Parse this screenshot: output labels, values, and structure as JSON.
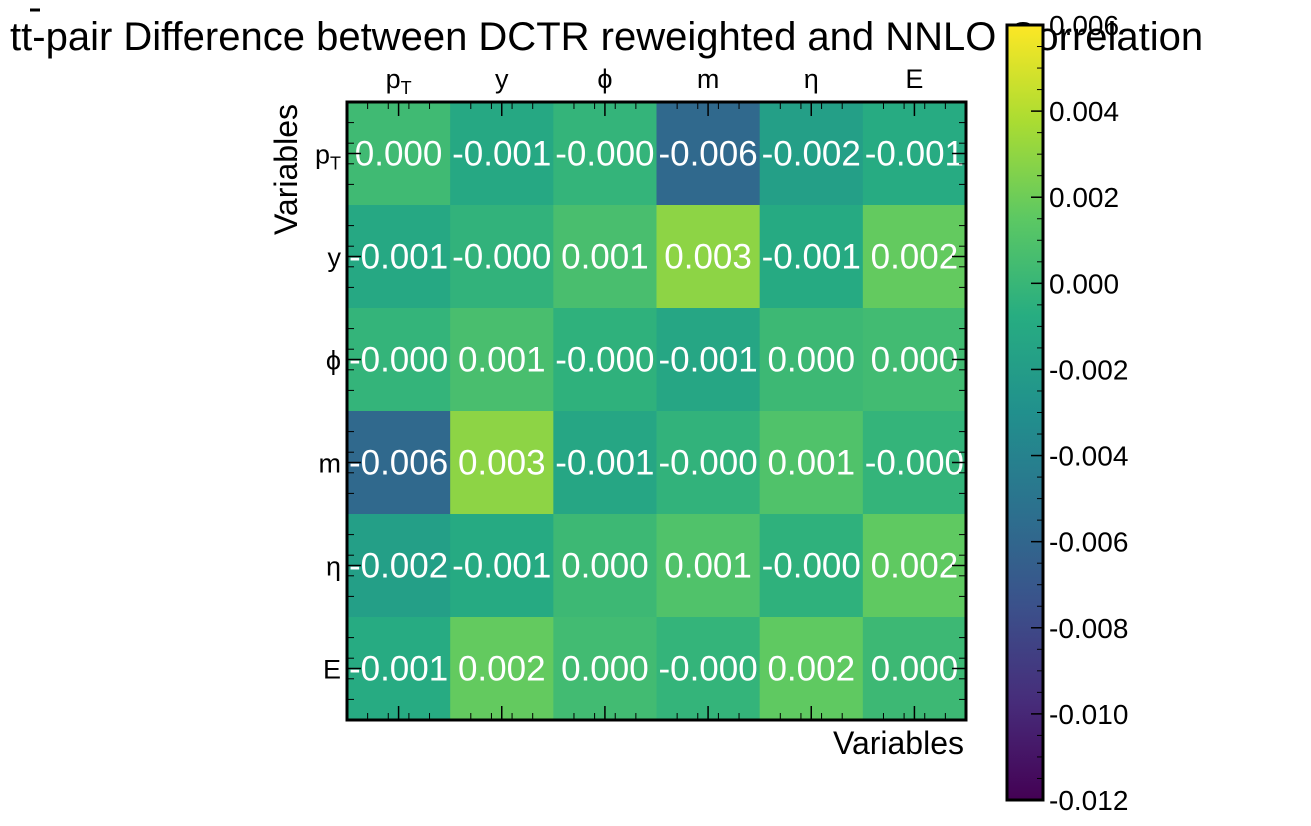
{
  "chart_data": {
    "type": "heatmap",
    "title_main": "t",
    "title_bar": "t",
    "title_rest": "-pair Difference between DCTR reweighted and NNLO Correlation",
    "xlabel": "Variables",
    "ylabel": "Variables",
    "x_categories": [
      {
        "base": "p",
        "sub": "T"
      },
      {
        "base": "y",
        "sub": ""
      },
      {
        "base": "ϕ",
        "sub": ""
      },
      {
        "base": "m",
        "sub": ""
      },
      {
        "base": "η",
        "sub": ""
      },
      {
        "base": "E",
        "sub": ""
      }
    ],
    "y_categories": [
      {
        "base": "p",
        "sub": "T"
      },
      {
        "base": "y",
        "sub": ""
      },
      {
        "base": "ϕ",
        "sub": ""
      },
      {
        "base": "m",
        "sub": ""
      },
      {
        "base": "η",
        "sub": ""
      },
      {
        "base": "E",
        "sub": ""
      }
    ],
    "values": [
      [
        0.0003,
        -0.0011,
        -0.0002,
        -0.0058,
        -0.0018,
        -0.0009
      ],
      [
        -0.0011,
        -0.0003,
        0.0007,
        0.0029,
        -0.001,
        0.0017
      ],
      [
        -0.0002,
        0.0007,
        -0.0004,
        -0.0013,
        0.0002,
        0.0004
      ],
      [
        -0.0058,
        0.0029,
        -0.0013,
        -0.0003,
        0.001,
        -0.0002
      ],
      [
        -0.0018,
        -0.001,
        0.0002,
        0.001,
        -0.0004,
        0.0016
      ],
      [
        -0.0009,
        0.0017,
        0.0004,
        -0.0002,
        0.0016,
        0.0002
      ]
    ],
    "cell_labels": [
      [
        "0.000",
        "-0.001",
        "-0.000",
        "-0.006",
        "-0.002",
        "-0.001"
      ],
      [
        "-0.001",
        "-0.000",
        "0.001",
        "0.003",
        "-0.001",
        "0.002"
      ],
      [
        "-0.000",
        "0.001",
        "-0.000",
        "-0.001",
        "0.000",
        "0.000"
      ],
      [
        "-0.006",
        "0.003",
        "-0.001",
        "-0.000",
        "0.001",
        "-0.000"
      ],
      [
        "-0.002",
        "-0.001",
        "0.000",
        "0.001",
        "-0.000",
        "0.002"
      ],
      [
        "-0.001",
        "0.002",
        "0.000",
        "-0.000",
        "0.002",
        "0.000"
      ]
    ],
    "colormap": "viridis",
    "vmin": -0.012,
    "vmax": 0.006,
    "colorbar_ticks": [
      "0.006",
      "0.004",
      "0.002",
      "0.000",
      "-0.002",
      "-0.004",
      "-0.006",
      "-0.008",
      "-0.010",
      "-0.012"
    ],
    "colorbar_tick_values": [
      0.006,
      0.004,
      0.002,
      0.0,
      -0.002,
      -0.004,
      -0.006,
      -0.008,
      -0.01,
      -0.012
    ],
    "cell_label_color": "#ffffff",
    "grid": false
  }
}
